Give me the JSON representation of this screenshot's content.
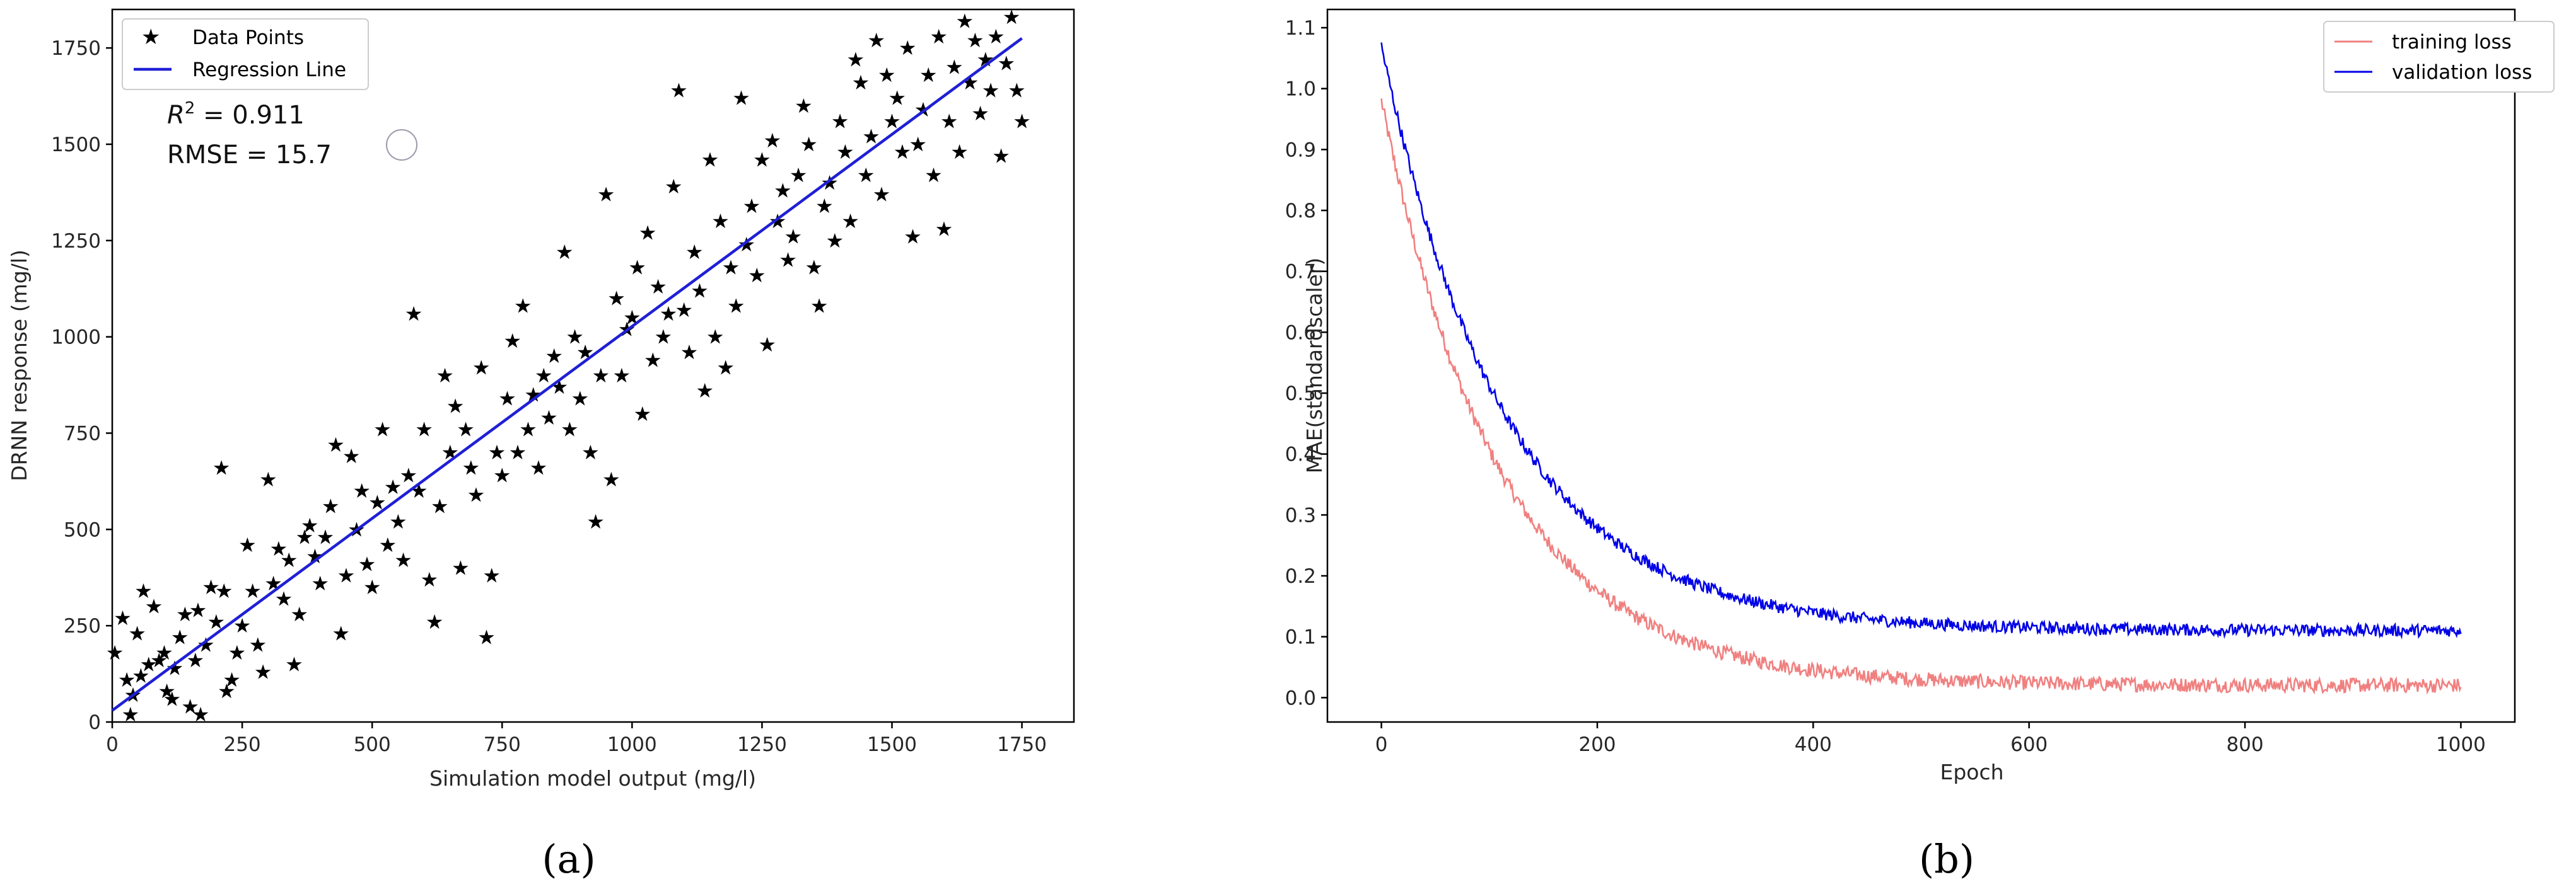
{
  "chart_data": [
    {
      "type": "scatter",
      "panel_label": "(a)",
      "xlabel": "Simulation model output (mg/l)",
      "ylabel": "DRNN response (mg/l)",
      "xlim": [
        0,
        1850
      ],
      "ylim": [
        0,
        1850
      ],
      "xticks": [
        "0",
        "250",
        "500",
        "750",
        "1000",
        "1250",
        "1500",
        "1750"
      ],
      "yticks": [
        "0",
        "250",
        "500",
        "750",
        "1000",
        "1250",
        "1500",
        "1750"
      ],
      "legend": {
        "position": "top-left",
        "entries": [
          "Data Points",
          "Regression Line"
        ]
      },
      "annotations": {
        "r2_prefix": "R",
        "r2_sup": "2",
        "r2_value": " = 0.911",
        "rmse": "RMSE = 15.7"
      },
      "regression_line": {
        "x": [
          0,
          1750
        ],
        "y": [
          30,
          1775
        ]
      },
      "marker_color": "#000000",
      "line_color": "#1f1fd6",
      "points": [
        [
          5,
          180
        ],
        [
          20,
          270
        ],
        [
          28,
          110
        ],
        [
          35,
          20
        ],
        [
          40,
          70
        ],
        [
          48,
          230
        ],
        [
          55,
          120
        ],
        [
          60,
          340
        ],
        [
          70,
          150
        ],
        [
          80,
          300
        ],
        [
          90,
          160
        ],
        [
          100,
          180
        ],
        [
          105,
          80
        ],
        [
          115,
          60
        ],
        [
          120,
          140
        ],
        [
          130,
          220
        ],
        [
          140,
          280
        ],
        [
          150,
          40
        ],
        [
          160,
          160
        ],
        [
          165,
          290
        ],
        [
          170,
          20
        ],
        [
          180,
          200
        ],
        [
          190,
          350
        ],
        [
          200,
          260
        ],
        [
          210,
          660
        ],
        [
          215,
          340
        ],
        [
          220,
          80
        ],
        [
          230,
          110
        ],
        [
          240,
          180
        ],
        [
          250,
          250
        ],
        [
          260,
          460
        ],
        [
          270,
          340
        ],
        [
          280,
          200
        ],
        [
          290,
          130
        ],
        [
          300,
          630
        ],
        [
          310,
          360
        ],
        [
          320,
          450
        ],
        [
          330,
          320
        ],
        [
          340,
          420
        ],
        [
          350,
          150
        ],
        [
          360,
          280
        ],
        [
          370,
          480
        ],
        [
          380,
          510
        ],
        [
          390,
          430
        ],
        [
          400,
          360
        ],
        [
          410,
          480
        ],
        [
          420,
          560
        ],
        [
          430,
          720
        ],
        [
          440,
          230
        ],
        [
          450,
          380
        ],
        [
          460,
          690
        ],
        [
          470,
          500
        ],
        [
          480,
          600
        ],
        [
          490,
          410
        ],
        [
          500,
          350
        ],
        [
          510,
          570
        ],
        [
          520,
          760
        ],
        [
          530,
          460
        ],
        [
          540,
          610
        ],
        [
          550,
          520
        ],
        [
          560,
          420
        ],
        [
          570,
          640
        ],
        [
          580,
          1060
        ],
        [
          590,
          600
        ],
        [
          600,
          760
        ],
        [
          610,
          370
        ],
        [
          620,
          260
        ],
        [
          630,
          560
        ],
        [
          640,
          900
        ],
        [
          650,
          700
        ],
        [
          660,
          820
        ],
        [
          670,
          400
        ],
        [
          680,
          760
        ],
        [
          690,
          660
        ],
        [
          700,
          590
        ],
        [
          710,
          920
        ],
        [
          720,
          220
        ],
        [
          730,
          380
        ],
        [
          740,
          700
        ],
        [
          750,
          640
        ],
        [
          760,
          840
        ],
        [
          770,
          990
        ],
        [
          780,
          700
        ],
        [
          790,
          1080
        ],
        [
          800,
          760
        ],
        [
          810,
          850
        ],
        [
          820,
          660
        ],
        [
          830,
          900
        ],
        [
          840,
          790
        ],
        [
          850,
          950
        ],
        [
          860,
          870
        ],
        [
          870,
          1220
        ],
        [
          880,
          760
        ],
        [
          890,
          1000
        ],
        [
          900,
          840
        ],
        [
          910,
          960
        ],
        [
          920,
          700
        ],
        [
          930,
          520
        ],
        [
          940,
          900
        ],
        [
          950,
          1370
        ],
        [
          960,
          630
        ],
        [
          970,
          1100
        ],
        [
          980,
          900
        ],
        [
          990,
          1020
        ],
        [
          1000,
          1050
        ],
        [
          1010,
          1180
        ],
        [
          1020,
          800
        ],
        [
          1030,
          1270
        ],
        [
          1040,
          940
        ],
        [
          1050,
          1130
        ],
        [
          1060,
          1000
        ],
        [
          1070,
          1060
        ],
        [
          1080,
          1390
        ],
        [
          1090,
          1640
        ],
        [
          1100,
          1070
        ],
        [
          1110,
          960
        ],
        [
          1120,
          1220
        ],
        [
          1130,
          1120
        ],
        [
          1140,
          860
        ],
        [
          1150,
          1460
        ],
        [
          1160,
          1000
        ],
        [
          1170,
          1300
        ],
        [
          1180,
          920
        ],
        [
          1190,
          1180
        ],
        [
          1200,
          1080
        ],
        [
          1210,
          1620
        ],
        [
          1220,
          1240
        ],
        [
          1230,
          1340
        ],
        [
          1240,
          1160
        ],
        [
          1250,
          1460
        ],
        [
          1260,
          980
        ],
        [
          1270,
          1510
        ],
        [
          1280,
          1300
        ],
        [
          1290,
          1380
        ],
        [
          1300,
          1200
        ],
        [
          1310,
          1260
        ],
        [
          1320,
          1420
        ],
        [
          1330,
          1600
        ],
        [
          1340,
          1500
        ],
        [
          1350,
          1180
        ],
        [
          1360,
          1080
        ],
        [
          1370,
          1340
        ],
        [
          1380,
          1400
        ],
        [
          1390,
          1250
        ],
        [
          1400,
          1560
        ],
        [
          1410,
          1480
        ],
        [
          1420,
          1300
        ],
        [
          1430,
          1720
        ],
        [
          1440,
          1660
        ],
        [
          1450,
          1420
        ],
        [
          1460,
          1520
        ],
        [
          1470,
          1770
        ],
        [
          1480,
          1370
        ],
        [
          1490,
          1680
        ],
        [
          1500,
          1560
        ],
        [
          1510,
          1620
        ],
        [
          1520,
          1480
        ],
        [
          1530,
          1750
        ],
        [
          1540,
          1260
        ],
        [
          1550,
          1500
        ],
        [
          1560,
          1590
        ],
        [
          1570,
          1680
        ],
        [
          1580,
          1420
        ],
        [
          1590,
          1780
        ],
        [
          1600,
          1280
        ],
        [
          1610,
          1560
        ],
        [
          1620,
          1700
        ],
        [
          1630,
          1480
        ],
        [
          1640,
          1820
        ],
        [
          1650,
          1660
        ],
        [
          1660,
          1770
        ],
        [
          1670,
          1580
        ],
        [
          1680,
          1720
        ],
        [
          1690,
          1640
        ],
        [
          1700,
          1780
        ],
        [
          1710,
          1470
        ],
        [
          1720,
          1710
        ],
        [
          1730,
          1830
        ],
        [
          1740,
          1640
        ],
        [
          1750,
          1560
        ]
      ]
    },
    {
      "type": "line",
      "panel_label": "(b)",
      "xlabel": "Epoch",
      "ylabel": "MAE(standardscaler)",
      "xlim": [
        -50,
        1050
      ],
      "ylim": [
        -0.04,
        1.13
      ],
      "xticks": [
        "0",
        "200",
        "400",
        "600",
        "800",
        "1000"
      ],
      "yticks": [
        "0.0",
        "0.1",
        "0.2",
        "0.3",
        "0.4",
        "0.5",
        "0.6",
        "0.7",
        "0.8",
        "0.9",
        "1.0",
        "1.1"
      ],
      "legend": {
        "position": "top-right",
        "entries": [
          "training loss",
          "validation loss"
        ]
      },
      "series": [
        {
          "name": "training loss",
          "color": "#f08080",
          "start": 0.98,
          "floor": 0.02,
          "tau": 110,
          "noise": 0.012
        },
        {
          "name": "validation loss",
          "color": "#0000e6",
          "start": 1.07,
          "floor": 0.11,
          "tau": 115,
          "noise": 0.01
        }
      ],
      "epochs": 1000
    }
  ]
}
